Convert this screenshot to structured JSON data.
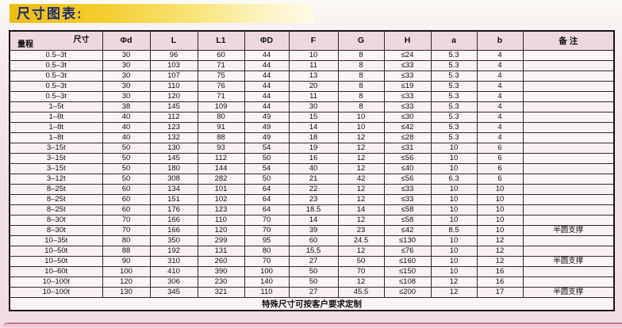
{
  "title": "尺寸图表:",
  "colors": {
    "title_text": "#1c2c74",
    "title_bar_yellow": "#efbc10",
    "header_cell_pink": "#eed7df",
    "cell_bg": "#fbf4f6",
    "page_pink": "#f3e0e6",
    "bottom_band_line": "#c17b93"
  },
  "table": {
    "corner": {
      "top_right": "尺寸",
      "bottom_left": "量程"
    },
    "columns": [
      "Φd",
      "L",
      "L1",
      "ΦD",
      "F",
      "G",
      "H",
      "a",
      "b",
      "备 注"
    ],
    "rows": [
      [
        "0.5–3t",
        "30",
        "96",
        "60",
        "44",
        "10",
        "8",
        "≤24",
        "5.3",
        "4",
        ""
      ],
      [
        "0.5–3t",
        "30",
        "103",
        "71",
        "44",
        "11",
        "8",
        "≤33",
        "5.3",
        "4",
        ""
      ],
      [
        "0.5–3t",
        "30",
        "107",
        "75",
        "44",
        "13",
        "8",
        "≤33",
        "5.3",
        "4",
        ""
      ],
      [
        "0.5–3t",
        "30",
        "110",
        "76",
        "44",
        "20",
        "8",
        "≤19",
        "5.3",
        "4",
        ""
      ],
      [
        "0.5–3t",
        "30",
        "120",
        "71",
        "44",
        "11",
        "8",
        "≤33",
        "5.3",
        "4",
        ""
      ],
      [
        "1–5t",
        "38",
        "145",
        "109",
        "44",
        "30",
        "8",
        "≤33",
        "5.3",
        "4",
        ""
      ],
      [
        "1–8t",
        "40",
        "112",
        "80",
        "49",
        "15",
        "10",
        "≤30",
        "5.3",
        "4",
        ""
      ],
      [
        "1–8t",
        "40",
        "123",
        "91",
        "49",
        "14",
        "10",
        "≤42",
        "5.3",
        "4",
        ""
      ],
      [
        "1–8t",
        "40",
        "132",
        "88",
        "49",
        "18",
        "12",
        "≤28",
        "5.3",
        "4",
        ""
      ],
      [
        "3–15t",
        "50",
        "130",
        "93",
        "54",
        "19",
        "12",
        "≤31",
        "10",
        "6",
        ""
      ],
      [
        "3–15t",
        "50",
        "145",
        "112",
        "50",
        "16",
        "12",
        "≤56",
        "10",
        "6",
        ""
      ],
      [
        "3–15t",
        "50",
        "180",
        "144",
        "54",
        "40",
        "12",
        "≤40",
        "10",
        "6",
        ""
      ],
      [
        "3–12t",
        "50",
        "308",
        "282",
        "50",
        "21",
        "42",
        "≤56",
        "6.3",
        "6",
        ""
      ],
      [
        "8–25t",
        "60",
        "134",
        "101",
        "64",
        "22",
        "12",
        "≤33",
        "10",
        "10",
        ""
      ],
      [
        "8–25t",
        "60",
        "151",
        "102",
        "64",
        "23",
        "12",
        "≤33",
        "10",
        "10",
        ""
      ],
      [
        "8–25t",
        "60",
        "176",
        "123",
        "64",
        "18.5",
        "14",
        "≤58",
        "10",
        "10",
        ""
      ],
      [
        "8–30t",
        "70",
        "166",
        "110",
        "70",
        "14",
        "12",
        "≤58",
        "10",
        "10",
        ""
      ],
      [
        "8–30t",
        "70",
        "166",
        "120",
        "70",
        "39",
        "23",
        "≤42",
        "8.5",
        "10",
        "半圆支撑"
      ],
      [
        "10–35t",
        "80",
        "350",
        "299",
        "95",
        "60",
        "24.5",
        "≤130",
        "10",
        "12",
        ""
      ],
      [
        "10–50t",
        "88",
        "192",
        "131",
        "80",
        "15.5",
        "12",
        "≤76",
        "10",
        "12",
        ""
      ],
      [
        "10–50t",
        "90",
        "310",
        "260",
        "70",
        "27",
        "50",
        "≤160",
        "10",
        "12",
        "半圆支撑"
      ],
      [
        "10–60t",
        "100",
        "410",
        "390",
        "100",
        "50",
        "70",
        "≤150",
        "10",
        "16",
        ""
      ],
      [
        "10–100t",
        "120",
        "306",
        "230",
        "140",
        "50",
        "12",
        "≤108",
        "12",
        "16",
        ""
      ],
      [
        "10–100t",
        "130",
        "345",
        "321",
        "110",
        "27",
        "45.5",
        "≤200",
        "12",
        "17",
        "半圆支撑"
      ]
    ],
    "footer": "特殊尺寸可按客户要求定制"
  }
}
